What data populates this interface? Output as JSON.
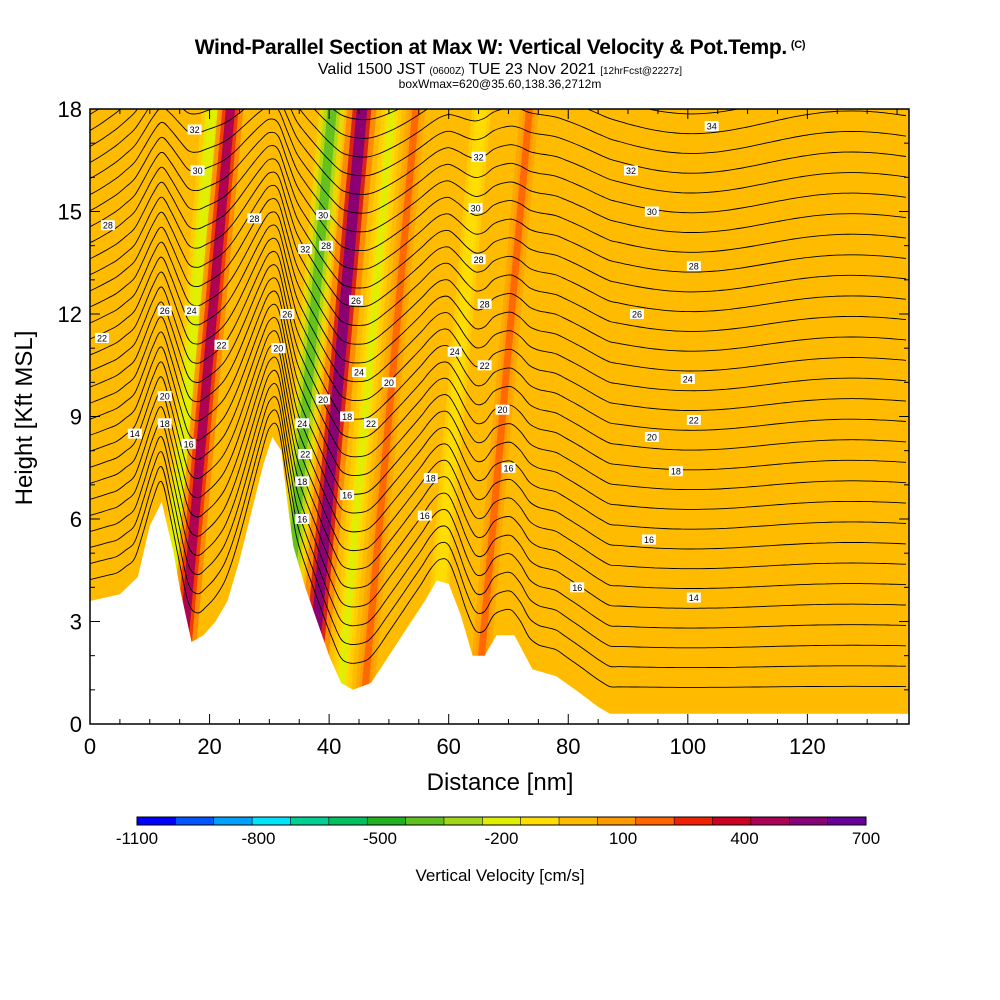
{
  "header": {
    "title": "Wind-Parallel Section at Max W: Vertical Velocity & Pot.Temp.",
    "title_note": "(C)",
    "valid_label": "Valid 1500 JST",
    "valid_utc": "(0600Z)",
    "valid_date": "TUE 23 Nov 2021",
    "forecast_note": "[12hrFcst@2227z]",
    "box_info": "boxWmax=620@35.60,138.36,2712m"
  },
  "chart_data": {
    "type": "heatmap",
    "xlabel": "Distance [nm]",
    "ylabel": "Height [Kft MSL]",
    "xlim": [
      0,
      137
    ],
    "ylim": [
      0,
      18
    ],
    "x_ticks": [
      "0",
      "20",
      "40",
      "60",
      "80",
      "100",
      "120"
    ],
    "y_ticks": [
      "0",
      "3",
      "6",
      "9",
      "12",
      "15",
      "18"
    ],
    "colorbar": {
      "title": "Vertical Velocity [cm/s]",
      "tick_labels": [
        "-1100",
        "-800",
        "-500",
        "-200",
        "100",
        "400",
        "700"
      ],
      "colors": [
        "#0000ff",
        "#0055ff",
        "#00a0ff",
        "#00e5ff",
        "#00d090",
        "#00c060",
        "#20b020",
        "#60c020",
        "#a0d818",
        "#e0ef00",
        "#ffdd00",
        "#ffbb00",
        "#ff9900",
        "#ff6600",
        "#ee2200",
        "#cc0022",
        "#aa0055",
        "#880077",
        "#660099"
      ]
    },
    "terrain_profile": [
      [
        0,
        3.6
      ],
      [
        5,
        3.8
      ],
      [
        8,
        4.3
      ],
      [
        10,
        5.8
      ],
      [
        12,
        6.5
      ],
      [
        14,
        5.0
      ],
      [
        15,
        4.0
      ],
      [
        16,
        3.2
      ],
      [
        17,
        2.4
      ],
      [
        19,
        2.6
      ],
      [
        21,
        3.0
      ],
      [
        23,
        3.6
      ],
      [
        25,
        4.8
      ],
      [
        27,
        6.2
      ],
      [
        29,
        7.6
      ],
      [
        30.5,
        8.4
      ],
      [
        32,
        8.0
      ],
      [
        33,
        6.5
      ],
      [
        34,
        5.2
      ],
      [
        36,
        4.0
      ],
      [
        38,
        3.0
      ],
      [
        40,
        2.0
      ],
      [
        42,
        1.2
      ],
      [
        44,
        1.0
      ],
      [
        47,
        1.2
      ],
      [
        50,
        2.0
      ],
      [
        53,
        2.8
      ],
      [
        56,
        3.6
      ],
      [
        58,
        4.2
      ],
      [
        60,
        4.1
      ],
      [
        62,
        3.2
      ],
      [
        64,
        2.0
      ],
      [
        66,
        2.0
      ],
      [
        68,
        2.6
      ],
      [
        71,
        2.6
      ],
      [
        74,
        1.6
      ],
      [
        78,
        1.4
      ],
      [
        82,
        0.9
      ],
      [
        85,
        0.5
      ],
      [
        87,
        0.3
      ],
      [
        137,
        0.3
      ]
    ],
    "vertical_velocity_bands": [
      {
        "x_center": 13,
        "value": -250
      },
      {
        "x_center": 16,
        "value": 450
      },
      {
        "x_center": 33,
        "value": -450
      },
      {
        "x_center": 38,
        "value": 620
      },
      {
        "x_center": 43,
        "value": -200
      },
      {
        "x_center": 47,
        "value": 150
      },
      {
        "x_center": 58,
        "value": -150
      },
      {
        "x_center": 66,
        "value": 150
      }
    ],
    "theta_contour_levels": [
      14,
      16,
      18,
      20,
      22,
      24,
      26,
      28,
      30,
      32,
      34
    ],
    "theta_contour_labels": [
      {
        "text": "32",
        "x": 17.5,
        "y": 17.4
      },
      {
        "text": "30",
        "x": 18.0,
        "y": 16.2
      },
      {
        "text": "28",
        "x": 3.0,
        "y": 14.6
      },
      {
        "text": "28",
        "x": 27.5,
        "y": 14.8
      },
      {
        "text": "26",
        "x": 12.5,
        "y": 12.1
      },
      {
        "text": "24",
        "x": 17.0,
        "y": 12.1
      },
      {
        "text": "22",
        "x": 2.0,
        "y": 11.3
      },
      {
        "text": "22",
        "x": 22.0,
        "y": 11.1
      },
      {
        "text": "20",
        "x": 12.5,
        "y": 9.6
      },
      {
        "text": "18",
        "x": 12.5,
        "y": 8.8
      },
      {
        "text": "16",
        "x": 16.5,
        "y": 8.2
      },
      {
        "text": "14",
        "x": 7.5,
        "y": 8.5
      },
      {
        "text": "32",
        "x": 36.0,
        "y": 13.9
      },
      {
        "text": "30",
        "x": 39.0,
        "y": 14.9
      },
      {
        "text": "28",
        "x": 39.5,
        "y": 14.0
      },
      {
        "text": "26",
        "x": 33.0,
        "y": 12.0
      },
      {
        "text": "20",
        "x": 31.5,
        "y": 11.0
      },
      {
        "text": "20",
        "x": 39.0,
        "y": 9.5
      },
      {
        "text": "24",
        "x": 35.5,
        "y": 8.8
      },
      {
        "text": "22",
        "x": 36.0,
        "y": 7.9
      },
      {
        "text": "18",
        "x": 35.5,
        "y": 7.1
      },
      {
        "text": "16",
        "x": 35.5,
        "y": 6.0
      },
      {
        "text": "26",
        "x": 44.5,
        "y": 12.4
      },
      {
        "text": "24",
        "x": 45.0,
        "y": 10.3
      },
      {
        "text": "18",
        "x": 43.0,
        "y": 9.0
      },
      {
        "text": "22",
        "x": 47.0,
        "y": 8.8
      },
      {
        "text": "16",
        "x": 43.0,
        "y": 6.7
      },
      {
        "text": "20",
        "x": 50.0,
        "y": 10.0
      },
      {
        "text": "32",
        "x": 65.0,
        "y": 16.6
      },
      {
        "text": "30",
        "x": 64.5,
        "y": 15.1
      },
      {
        "text": "28",
        "x": 65.0,
        "y": 13.6
      },
      {
        "text": "28",
        "x": 66.0,
        "y": 12.3
      },
      {
        "text": "24",
        "x": 61.0,
        "y": 10.9
      },
      {
        "text": "22",
        "x": 66.0,
        "y": 10.5
      },
      {
        "text": "20",
        "x": 69.0,
        "y": 9.2
      },
      {
        "text": "16",
        "x": 70.0,
        "y": 7.5
      },
      {
        "text": "18",
        "x": 57.0,
        "y": 7.2
      },
      {
        "text": "16",
        "x": 56.0,
        "y": 6.1
      },
      {
        "text": "34",
        "x": 104.0,
        "y": 17.5
      },
      {
        "text": "32",
        "x": 90.5,
        "y": 16.2
      },
      {
        "text": "30",
        "x": 94.0,
        "y": 15.0
      },
      {
        "text": "28",
        "x": 101.0,
        "y": 13.4
      },
      {
        "text": "26",
        "x": 91.5,
        "y": 12.0
      },
      {
        "text": "24",
        "x": 100.0,
        "y": 10.1
      },
      {
        "text": "22",
        "x": 101.0,
        "y": 8.9
      },
      {
        "text": "20",
        "x": 94.0,
        "y": 8.4
      },
      {
        "text": "18",
        "x": 98.0,
        "y": 7.4
      },
      {
        "text": "16",
        "x": 93.5,
        "y": 5.4
      },
      {
        "text": "16",
        "x": 81.5,
        "y": 4.0
      },
      {
        "text": "14",
        "x": 101.0,
        "y": 3.7
      }
    ]
  }
}
